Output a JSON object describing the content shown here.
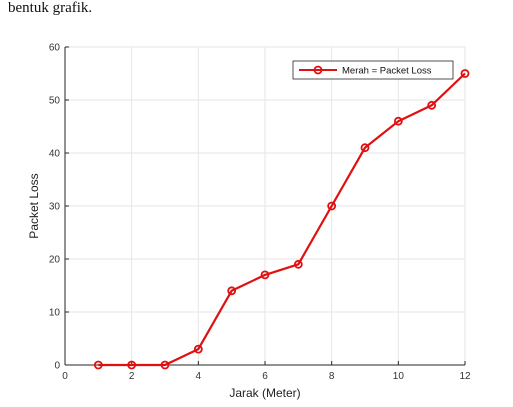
{
  "page": {
    "header_text": "bentuk grafik."
  },
  "colors": {
    "series": "#e01010",
    "grid": "#e6e6e6",
    "axis": "#262626"
  },
  "chart_data": {
    "type": "line",
    "title": "",
    "xlabel": "Jarak (Meter)",
    "ylabel": "Packet Loss",
    "xlim": [
      0,
      12
    ],
    "ylim": [
      0,
      60
    ],
    "xticks": [
      0,
      2,
      4,
      6,
      8,
      10,
      12
    ],
    "yticks": [
      0,
      10,
      20,
      30,
      40,
      50,
      60
    ],
    "grid": true,
    "legend_position": "top-right",
    "series": [
      {
        "name": "Merah = Packet Loss",
        "marker": "circle",
        "x": [
          1,
          2,
          3,
          4,
          5,
          6,
          7,
          8,
          9,
          10,
          11,
          12
        ],
        "y": [
          0,
          0,
          0,
          3,
          14,
          17,
          19,
          30,
          41,
          46,
          49,
          55
        ]
      }
    ]
  }
}
